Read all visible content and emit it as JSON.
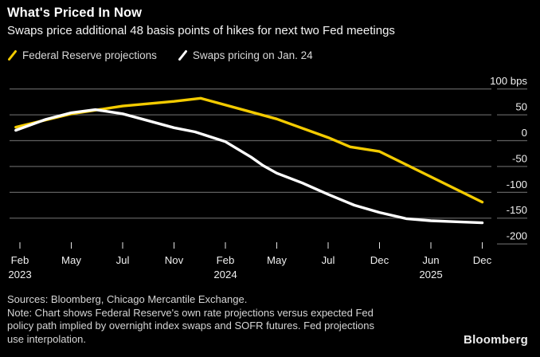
{
  "header": {
    "title": "What's Priced In Now",
    "subtitle": "Swaps price additional 48 basis points of hikes for next two Fed meetings"
  },
  "legend": [
    {
      "label": "Federal Reserve projections",
      "color": "#f3cb00"
    },
    {
      "label": "Swaps pricing on Jan. 24",
      "color": "#ffffff"
    }
  ],
  "chart_data": {
    "type": "line",
    "title": "What's Priced In Now",
    "unit": "bps",
    "ylim": [
      -200,
      100
    ],
    "grid": "horizontal",
    "legend_position": "top-left",
    "y_ticks": [
      {
        "label": "100 bps",
        "value": 100
      },
      {
        "label": "50",
        "value": 50
      },
      {
        "label": "0",
        "value": 0
      },
      {
        "label": "-50",
        "value": -50
      },
      {
        "label": "-100",
        "value": -100
      },
      {
        "label": "-150",
        "value": -150
      },
      {
        "label": "-200",
        "value": -200
      }
    ],
    "x_ticks": [
      {
        "month": "Feb",
        "year": "2023"
      },
      {
        "month": "May"
      },
      {
        "month": "Jul"
      },
      {
        "month": "Nov"
      },
      {
        "month": "Feb",
        "year": "2024"
      },
      {
        "month": "May"
      },
      {
        "month": "Jul"
      },
      {
        "month": "Dec"
      },
      {
        "month": "Jun",
        "year": "2025"
      },
      {
        "month": "Dec"
      }
    ],
    "series": [
      {
        "name": "Federal Reserve projections",
        "color": "#f3cb00",
        "points": [
          [
            -0.08,
            26
          ],
          [
            1,
            52
          ],
          [
            2,
            67
          ],
          [
            3,
            76
          ],
          [
            3.52,
            82
          ],
          [
            5,
            42
          ],
          [
            6,
            6
          ],
          [
            6.43,
            -12
          ],
          [
            7,
            -21
          ],
          [
            8,
            -70
          ],
          [
            9,
            -119
          ]
        ]
      },
      {
        "name": "Swaps pricing on Jan. 24",
        "color": "#ffffff",
        "points": [
          [
            -0.08,
            20
          ],
          [
            0.5,
            41
          ],
          [
            1,
            54
          ],
          [
            1.47,
            60
          ],
          [
            2,
            52
          ],
          [
            2.48,
            39
          ],
          [
            3,
            25
          ],
          [
            3.41,
            17
          ],
          [
            4,
            -2
          ],
          [
            4.5,
            -32
          ],
          [
            4.73,
            -48
          ],
          [
            5,
            -63
          ],
          [
            5.5,
            -82
          ],
          [
            6,
            -104
          ],
          [
            6.51,
            -125
          ],
          [
            7,
            -139
          ],
          [
            7.52,
            -151
          ],
          [
            8,
            -155
          ],
          [
            8.5,
            -157
          ],
          [
            9,
            -159
          ]
        ]
      }
    ]
  },
  "footer": {
    "sources": "Sources: Bloomberg, Chicago Mercantile Exchange.",
    "note": "Note: Chart shows Federal Reserve's own rate projections versus expected Fed policy path implied by overnight index swaps and SOFR futures. Fed projections use interpolation.",
    "brand": "Bloomberg"
  }
}
